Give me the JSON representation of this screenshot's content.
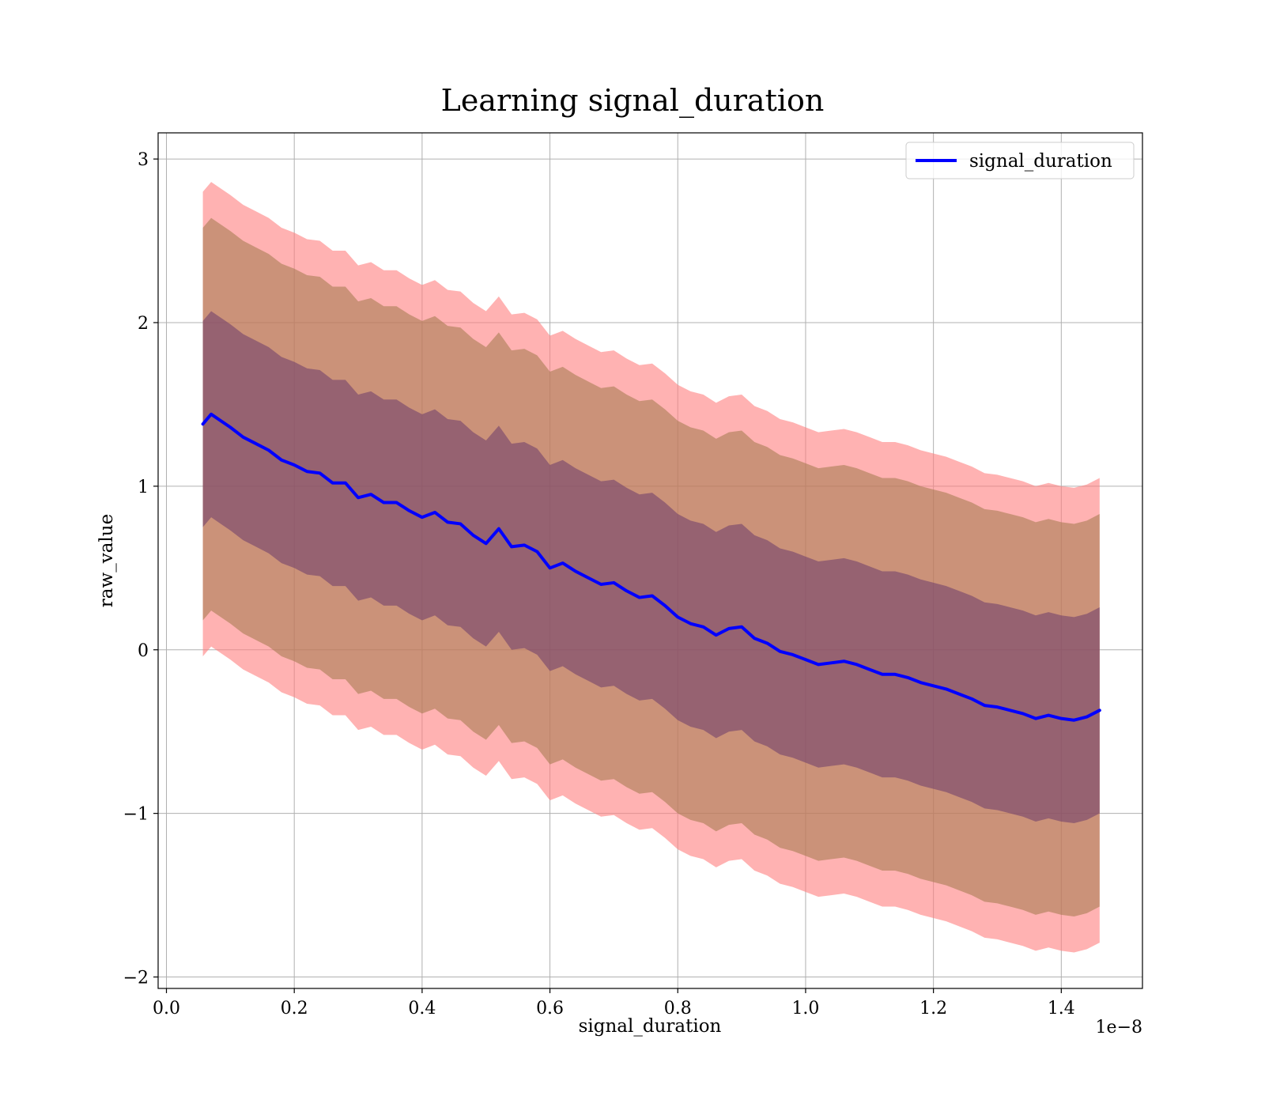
{
  "chart_data": {
    "type": "line",
    "title": "Learning signal_duration",
    "xlabel": "signal_duration",
    "ylabel": "raw_value",
    "x_offset_label": "1e−8",
    "xlim": [
      -0.013,
      1.527
    ],
    "ylim": [
      -2.07,
      3.16
    ],
    "grid": true,
    "legend_position": "top-right",
    "x_ticks": [
      0.0,
      0.2,
      0.4,
      0.6,
      0.8,
      1.0,
      1.2,
      1.4
    ],
    "x_tick_labels": [
      "0.0",
      "0.2",
      "0.4",
      "0.6",
      "0.8",
      "1.0",
      "1.2",
      "1.4"
    ],
    "y_ticks": [
      -2,
      -1,
      0,
      1,
      2,
      3
    ],
    "y_tick_labels": [
      "−2",
      "−1",
      "0",
      "1",
      "2",
      "3"
    ],
    "band_colors": {
      "outer": "#ff7f7f",
      "middle": "#a0784b",
      "inner": "#6b3a6b"
    },
    "series": [
      {
        "name": "signal_duration",
        "color": "#0000ff",
        "x": [
          0.057,
          0.07,
          0.085,
          0.1,
          0.12,
          0.14,
          0.16,
          0.18,
          0.2,
          0.22,
          0.24,
          0.26,
          0.28,
          0.3,
          0.32,
          0.34,
          0.36,
          0.38,
          0.4,
          0.42,
          0.44,
          0.46,
          0.48,
          0.5,
          0.52,
          0.54,
          0.56,
          0.58,
          0.6,
          0.62,
          0.64,
          0.66,
          0.68,
          0.7,
          0.72,
          0.74,
          0.76,
          0.78,
          0.8,
          0.82,
          0.84,
          0.86,
          0.88,
          0.9,
          0.92,
          0.94,
          0.96,
          0.98,
          1.0,
          1.02,
          1.04,
          1.06,
          1.08,
          1.1,
          1.12,
          1.14,
          1.16,
          1.18,
          1.2,
          1.22,
          1.24,
          1.26,
          1.28,
          1.3,
          1.32,
          1.34,
          1.36,
          1.38,
          1.4,
          1.42,
          1.44,
          1.46
        ],
        "values": [
          1.38,
          1.44,
          1.4,
          1.36,
          1.3,
          1.26,
          1.22,
          1.16,
          1.13,
          1.09,
          1.08,
          1.02,
          1.02,
          0.93,
          0.95,
          0.9,
          0.9,
          0.85,
          0.81,
          0.84,
          0.78,
          0.77,
          0.7,
          0.65,
          0.74,
          0.63,
          0.64,
          0.6,
          0.5,
          0.53,
          0.48,
          0.44,
          0.4,
          0.41,
          0.36,
          0.32,
          0.33,
          0.27,
          0.2,
          0.16,
          0.14,
          0.09,
          0.13,
          0.14,
          0.07,
          0.04,
          -0.01,
          -0.03,
          -0.06,
          -0.09,
          -0.08,
          -0.07,
          -0.09,
          -0.12,
          -0.15,
          -0.15,
          -0.17,
          -0.2,
          -0.22,
          -0.24,
          -0.27,
          -0.3,
          -0.34,
          -0.35,
          -0.37,
          -0.39,
          -0.42,
          -0.4,
          -0.42,
          -0.43,
          -0.41,
          -0.37
        ],
        "band_offsets": {
          "inner": 0.63,
          "middle": 1.2,
          "outer": 1.42
        }
      }
    ]
  }
}
